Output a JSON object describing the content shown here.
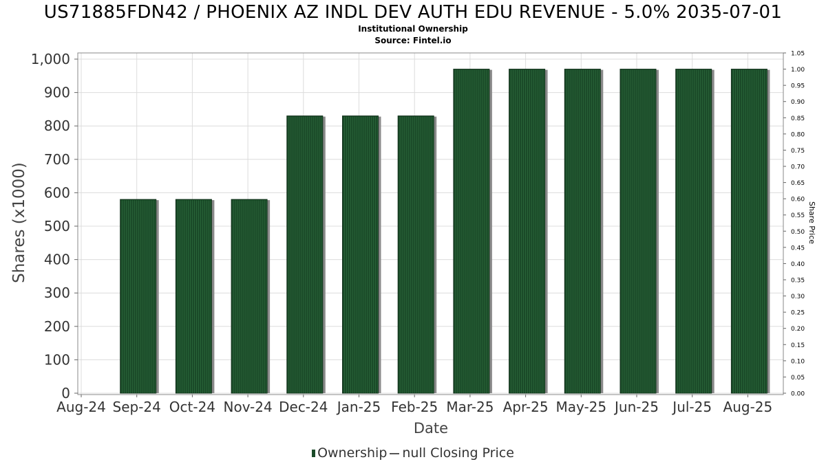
{
  "chart_data": {
    "type": "bar",
    "title": "US71885FDN42 / PHOENIX AZ INDL DEV AUTH EDU REVENUE - 5.0% 2035-07-01",
    "subtitle_lines": [
      "Institutional Ownership",
      "Source: Fintel.io"
    ],
    "xlabel": "Date",
    "ylabel": "Shares (x1000)",
    "y2label": "Share Price",
    "x_tick_labels": [
      "Aug-24",
      "Sep-24",
      "Oct-24",
      "Nov-24",
      "Dec-24",
      "Jan-25",
      "Feb-25",
      "Mar-25",
      "Apr-25",
      "May-25",
      "Jun-25",
      "Jul-25",
      "Aug-25"
    ],
    "categories": [
      "Sep-24",
      "Oct-24",
      "Nov-24",
      "Dec-24",
      "Jan-25",
      "Feb-25",
      "Mar-25",
      "Apr-25",
      "May-25",
      "Jun-25",
      "Jul-25",
      "Aug-25"
    ],
    "series": [
      {
        "name": "Ownership",
        "values": [
          580,
          580,
          580,
          830,
          830,
          830,
          970,
          970,
          970,
          970,
          970,
          970
        ]
      }
    ],
    "ylim": [
      0,
      1000
    ],
    "y_ticks": [
      "0",
      "100",
      "200",
      "300",
      "400",
      "500",
      "600",
      "700",
      "800",
      "900",
      "1,000"
    ],
    "y2lim": [
      0,
      1.05
    ],
    "y2_ticks": [
      "0.00",
      "0.05",
      "0.10",
      "0.15",
      "0.20",
      "0.25",
      "0.30",
      "0.35",
      "0.40",
      "0.45",
      "0.50",
      "0.55",
      "0.60",
      "0.65",
      "0.70",
      "0.75",
      "0.80",
      "0.85",
      "0.90",
      "0.95",
      "1.00",
      "1.05"
    ],
    "grid": true,
    "legend_position": "bottom-center",
    "colors": {
      "bar": "#1a4a28",
      "bar_shadow": "#8a8a8a",
      "grid": "#dcdcdc",
      "frame": "#888888"
    }
  },
  "legend": {
    "ownership_label": "Ownership",
    "price_label": "null Closing Price"
  }
}
